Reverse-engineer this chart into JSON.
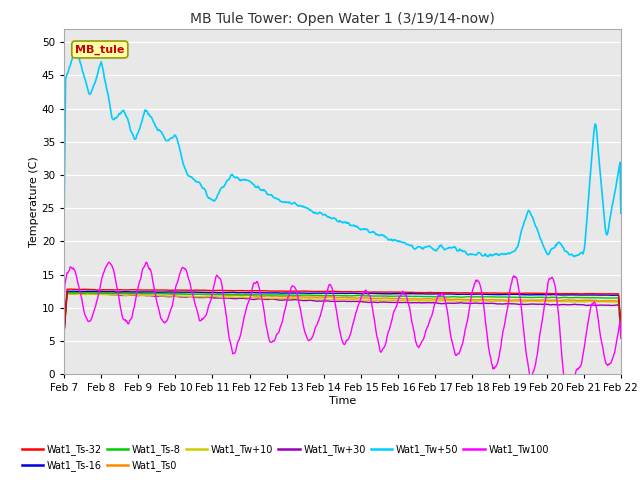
{
  "title": "MB Tule Tower: Open Water 1 (3/19/14-now)",
  "xlabel": "Time",
  "ylabel": "Temperature (C)",
  "ylim": [
    0,
    52
  ],
  "xlim_days": 15,
  "x_tick_labels": [
    "Feb 7",
    "Feb 8",
    "Feb 9",
    "Feb 10",
    "Feb 11",
    "Feb 12",
    "Feb 13",
    "Feb 14",
    "Feb 15",
    "Feb 16",
    "Feb 17",
    "Feb 18",
    "Feb 19",
    "Feb 20",
    "Feb 21",
    "Feb 22"
  ],
  "legend_label": "MB_tule",
  "series": {
    "Wat1_Ts-32": {
      "color": "#ff0000",
      "lw": 1.0
    },
    "Wat1_Ts-16": {
      "color": "#0000dd",
      "lw": 1.0
    },
    "Wat1_Ts-8": {
      "color": "#00cc00",
      "lw": 1.0
    },
    "Wat1_Ts0": {
      "color": "#ff8800",
      "lw": 1.0
    },
    "Wat1_Tw+10": {
      "color": "#cccc00",
      "lw": 1.0
    },
    "Wat1_Tw+30": {
      "color": "#9900bb",
      "lw": 1.0
    },
    "Wat1_Tw+50": {
      "color": "#00ccff",
      "lw": 1.2
    },
    "Wat1_Tw100": {
      "color": "#ff00ff",
      "lw": 1.0
    }
  },
  "yticks": [
    0,
    5,
    10,
    15,
    20,
    25,
    30,
    35,
    40,
    45,
    50
  ],
  "bg_color": "#e8e8e8",
  "grid_color": "#ffffff",
  "fig_bg": "#ffffff"
}
